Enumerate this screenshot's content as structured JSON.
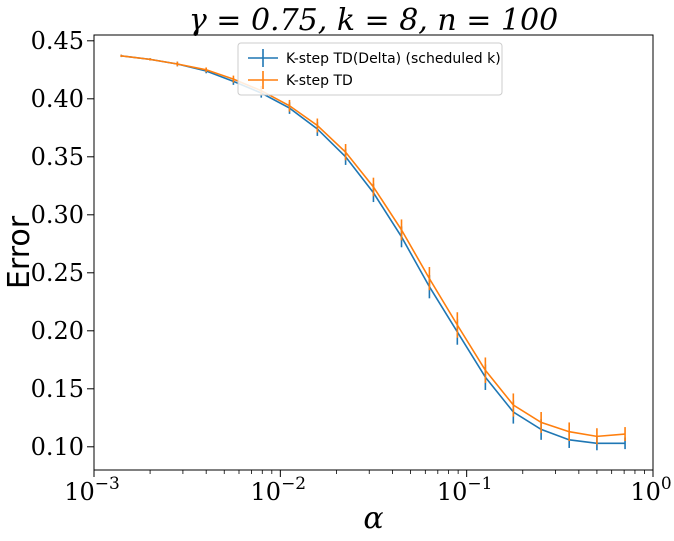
{
  "chart_data": {
    "type": "line",
    "title": "γ = 0.75, k = 8, n = 100",
    "xlabel": "α",
    "ylabel": "Error",
    "xscale": "log",
    "xlim": [
      0.001,
      1.0
    ],
    "ylim": [
      0.08,
      0.455
    ],
    "grid": false,
    "legend_position": "top-center",
    "x_ticks": [
      {
        "value": 0.001,
        "base": "10",
        "exp": "−3"
      },
      {
        "value": 0.01,
        "base": "10",
        "exp": "−2"
      },
      {
        "value": 0.1,
        "base": "10",
        "exp": "−1"
      },
      {
        "value": 1.0,
        "base": "10",
        "exp": "0"
      }
    ],
    "y_ticks": [
      {
        "value": 0.1,
        "label": "0.10"
      },
      {
        "value": 0.15,
        "label": "0.15"
      },
      {
        "value": 0.2,
        "label": "0.20"
      },
      {
        "value": 0.25,
        "label": "0.25"
      },
      {
        "value": 0.3,
        "label": "0.30"
      },
      {
        "value": 0.35,
        "label": "0.35"
      },
      {
        "value": 0.4,
        "label": "0.40"
      },
      {
        "value": 0.45,
        "label": "0.45"
      }
    ],
    "x": [
      0.0014,
      0.002,
      0.0028,
      0.004,
      0.0056,
      0.0079,
      0.0112,
      0.0158,
      0.0224,
      0.0316,
      0.0447,
      0.0631,
      0.0891,
      0.126,
      0.178,
      0.251,
      0.355,
      0.5,
      0.708
    ],
    "series": [
      {
        "name": "K-step TD(Delta) (scheduled k)",
        "color": "#1f77b4",
        "values": [
          0.437,
          0.434,
          0.43,
          0.424,
          0.415,
          0.405,
          0.392,
          0.374,
          0.35,
          0.319,
          0.281,
          0.238,
          0.199,
          0.16,
          0.13,
          0.115,
          0.106,
          0.103,
          0.103
        ],
        "errors": [
          0.001,
          0.001,
          0.002,
          0.002,
          0.003,
          0.004,
          0.005,
          0.006,
          0.007,
          0.008,
          0.009,
          0.01,
          0.011,
          0.011,
          0.01,
          0.009,
          0.007,
          0.006,
          0.005
        ]
      },
      {
        "name": "K-step TD",
        "color": "#ff7f0e",
        "values": [
          0.437,
          0.434,
          0.43,
          0.425,
          0.417,
          0.407,
          0.394,
          0.377,
          0.354,
          0.324,
          0.287,
          0.245,
          0.205,
          0.166,
          0.136,
          0.121,
          0.113,
          0.109,
          0.111
        ],
        "errors": [
          0.001,
          0.001,
          0.002,
          0.002,
          0.003,
          0.004,
          0.005,
          0.006,
          0.007,
          0.008,
          0.009,
          0.01,
          0.011,
          0.011,
          0.01,
          0.009,
          0.008,
          0.007,
          0.006
        ]
      }
    ]
  }
}
